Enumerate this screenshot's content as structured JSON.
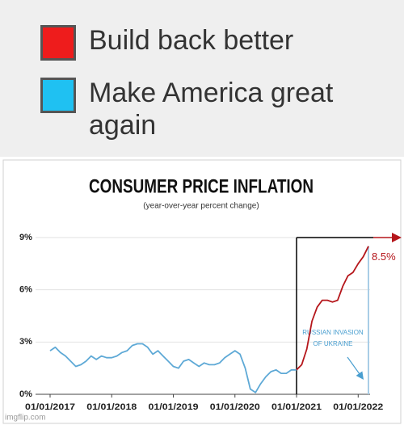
{
  "chart_data": {
    "type": "line",
    "title": "CONSUMER PRICE INFLATION",
    "subtitle": "(year-over-year percent change)",
    "x": [
      "2017-01-01",
      "2017-02-01",
      "2017-03-01",
      "2017-04-01",
      "2017-05-01",
      "2017-06-01",
      "2017-07-01",
      "2017-08-01",
      "2017-09-01",
      "2017-10-01",
      "2017-11-01",
      "2017-12-01",
      "2018-01-01",
      "2018-02-01",
      "2018-03-01",
      "2018-04-01",
      "2018-05-01",
      "2018-06-01",
      "2018-07-01",
      "2018-08-01",
      "2018-09-01",
      "2018-10-01",
      "2018-11-01",
      "2018-12-01",
      "2019-01-01",
      "2019-02-01",
      "2019-03-01",
      "2019-04-01",
      "2019-05-01",
      "2019-06-01",
      "2019-07-01",
      "2019-08-01",
      "2019-09-01",
      "2019-10-01",
      "2019-11-01",
      "2019-12-01",
      "2020-01-01",
      "2020-02-01",
      "2020-03-01",
      "2020-04-01",
      "2020-05-01",
      "2020-06-01",
      "2020-07-01",
      "2020-08-01",
      "2020-09-01",
      "2020-10-01",
      "2020-11-01",
      "2020-12-01",
      "2021-01-01",
      "2021-02-01",
      "2021-03-01",
      "2021-04-01",
      "2021-05-01",
      "2021-06-01",
      "2021-07-01",
      "2021-08-01",
      "2021-09-01",
      "2021-10-01",
      "2021-11-01",
      "2021-12-01",
      "2022-01-01",
      "2022-02-01",
      "2022-03-01"
    ],
    "series": [
      {
        "name": "Make America great again",
        "color": "#5ea9d6",
        "legend_color": "#1fc1f2",
        "values": [
          2.5,
          2.7,
          2.4,
          2.2,
          1.9,
          1.6,
          1.7,
          1.9,
          2.2,
          2.0,
          2.2,
          2.1,
          2.1,
          2.2,
          2.4,
          2.5,
          2.8,
          2.9,
          2.9,
          2.7,
          2.3,
          2.5,
          2.2,
          1.9,
          1.6,
          1.5,
          1.9,
          2.0,
          1.8,
          1.6,
          1.8,
          1.7,
          1.7,
          1.8,
          2.1,
          2.3,
          2.5,
          2.3,
          1.5,
          0.3,
          0.1,
          0.6,
          1.0,
          1.3,
          1.4,
          1.2,
          1.2,
          1.4,
          1.4,
          null,
          null,
          null,
          null,
          null,
          null,
          null,
          null,
          null,
          null,
          null,
          null,
          null,
          null
        ]
      },
      {
        "name": "Build back better",
        "color": "#b5161b",
        "legend_color": "#ee1c1c",
        "values": [
          null,
          null,
          null,
          null,
          null,
          null,
          null,
          null,
          null,
          null,
          null,
          null,
          null,
          null,
          null,
          null,
          null,
          null,
          null,
          null,
          null,
          null,
          null,
          null,
          null,
          null,
          null,
          null,
          null,
          null,
          null,
          null,
          null,
          null,
          null,
          null,
          null,
          null,
          null,
          null,
          null,
          null,
          null,
          null,
          null,
          null,
          null,
          null,
          1.4,
          1.7,
          2.6,
          4.2,
          5.0,
          5.4,
          5.4,
          5.3,
          5.4,
          6.2,
          6.8,
          7.0,
          7.5,
          7.9,
          8.5
        ]
      }
    ],
    "legend_order": [
      1,
      0
    ],
    "xlim": [
      "2017-01-01",
      "2022-03-01"
    ],
    "xticks": [
      {
        "value": "2017-01-01",
        "label": "01/01/2017"
      },
      {
        "value": "2018-01-01",
        "label": "01/01/2018"
      },
      {
        "value": "2019-01-01",
        "label": "01/01/2019"
      },
      {
        "value": "2020-01-01",
        "label": "01/01/2020"
      },
      {
        "value": "2021-01-01",
        "label": "01/01/2021"
      },
      {
        "value": "2022-01-01",
        "label": "01/01/2022"
      }
    ],
    "ylim": [
      0,
      9
    ],
    "yticks": [
      {
        "value": 0,
        "label": "0%"
      },
      {
        "value": 3,
        "label": "3%"
      },
      {
        "value": 6,
        "label": "6%"
      },
      {
        "value": 9,
        "label": "9%"
      }
    ],
    "grid": true,
    "end_label": {
      "value": 8.5,
      "label": "8.5%"
    },
    "annotation_lines": [
      "RUSSIAN INVASION",
      "OF UKRAINE"
    ],
    "annotation_color": "#4a9fd0"
  },
  "watermark": "imgflip.com"
}
